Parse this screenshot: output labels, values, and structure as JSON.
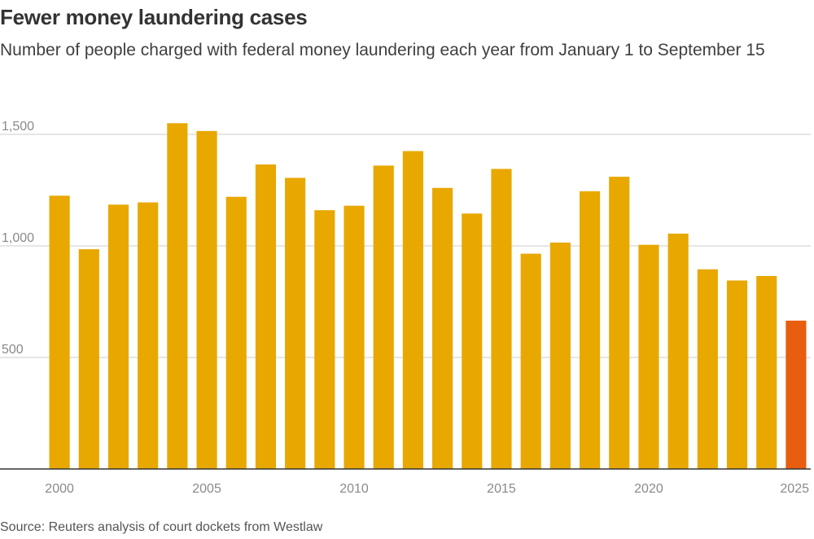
{
  "title": "Fewer money laundering cases",
  "subtitle": "Number of people charged with federal money laundering each year from January 1 to September 15",
  "source": "Source: Reuters analysis of court dockets from Westlaw",
  "colors": {
    "bar": "#e8a800",
    "highlight": "#e85d10",
    "grid": "#cccccc",
    "axis": "#333333"
  },
  "chart_data": {
    "type": "bar",
    "title": "Fewer money laundering cases",
    "subtitle": "Number of people charged with federal money laundering each year from January 1 to September 15",
    "xlabel": "",
    "ylabel": "",
    "ylim": [
      0,
      1500
    ],
    "yticks": [
      500,
      1000,
      1500
    ],
    "ytick_labels": [
      "500",
      "1,000",
      "1,500"
    ],
    "xtick_labels": [
      "2000",
      "2005",
      "2010",
      "2015",
      "2020",
      "2025"
    ],
    "grid": true,
    "legend": "none",
    "categories": [
      2000,
      2001,
      2002,
      2003,
      2004,
      2005,
      2006,
      2007,
      2008,
      2009,
      2010,
      2011,
      2012,
      2013,
      2014,
      2015,
      2016,
      2017,
      2018,
      2019,
      2020,
      2021,
      2022,
      2023,
      2024,
      2025
    ],
    "values": [
      1225,
      985,
      1185,
      1195,
      1550,
      1515,
      1220,
      1365,
      1305,
      1160,
      1180,
      1360,
      1425,
      1260,
      1145,
      1345,
      965,
      1015,
      1245,
      1310,
      1005,
      1055,
      895,
      845,
      865,
      665
    ],
    "highlight_category": 2025
  }
}
